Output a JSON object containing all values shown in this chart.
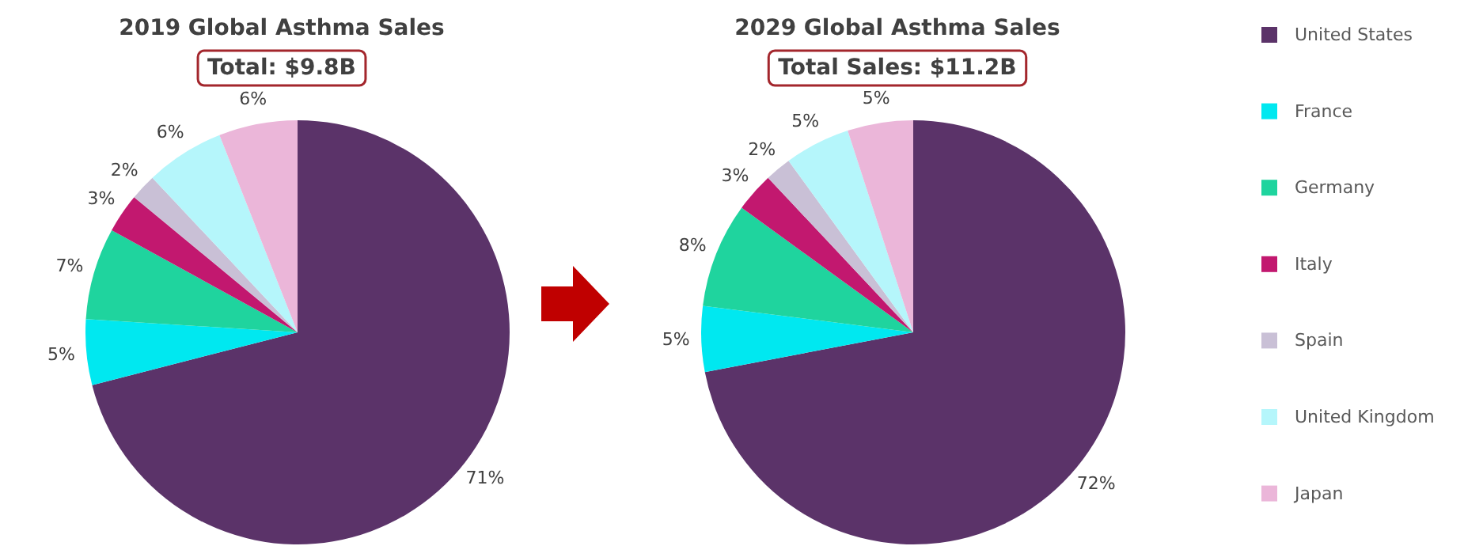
{
  "chart_data": [
    {
      "type": "pie",
      "title": "2019 Global Asthma Sales",
      "subtitle": "Total: $9.8B",
      "categories": [
        null,
        null,
        null,
        null,
        null,
        null,
        null
      ],
      "values": [
        71,
        5,
        7,
        3,
        2,
        6,
        6
      ],
      "value_labels": [
        "71%",
        "5%",
        "7%",
        "3%",
        "2%",
        "6%",
        "6%"
      ],
      "colors": [
        "#5b3369",
        "#00e8f0",
        "#1fd49e",
        "#c2186f",
        "#c9c0d6",
        "#b5f6fb",
        "#ebb6d9"
      ]
    },
    {
      "type": "pie",
      "title": "2029 Global Asthma Sales",
      "subtitle": "Total Sales: $11.2B",
      "categories": [
        "United States",
        "France",
        "Germany",
        "Italy",
        "Spain",
        "United Kingdom",
        "Japan"
      ],
      "values": [
        72,
        5,
        8,
        3,
        2,
        5,
        5
      ],
      "value_labels": [
        "72%",
        "5%",
        "8%",
        "3%",
        "2%",
        "5%",
        "5%"
      ],
      "colors": [
        "#5b3369",
        "#00e8f0",
        "#1fd49e",
        "#c2186f",
        "#c9c0d6",
        "#b5f6fb",
        "#ebb6d9"
      ],
      "legend": "right"
    }
  ]
}
